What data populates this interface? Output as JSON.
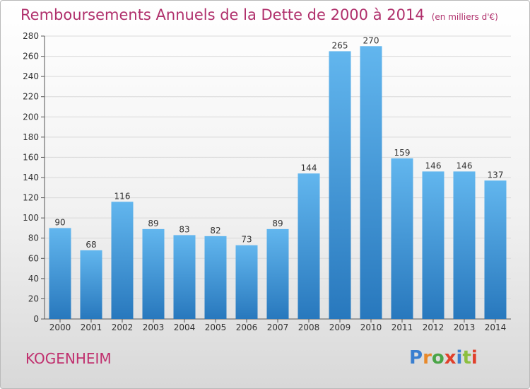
{
  "header": {
    "title": "Remboursements Annuels de la Dette de 2000 à 2014",
    "subtitle": "(en milliers d'€)"
  },
  "footer": {
    "commune": "KOGENHEIM",
    "logo": "Proxiti"
  },
  "colors": {
    "title": "#b0306c",
    "bar_top": "#5fb2ec",
    "bar_bottom": "#2a7fc1",
    "grid": "#d9d9d9"
  },
  "chart_data": {
    "type": "bar",
    "title": "Remboursements Annuels de la Dette de 2000 à 2014",
    "subtitle": "(en milliers d'€)",
    "xlabel": "",
    "ylabel": "",
    "categories": [
      "2000",
      "2001",
      "2002",
      "2003",
      "2004",
      "2005",
      "2006",
      "2007",
      "2008",
      "2009",
      "2010",
      "2011",
      "2012",
      "2013",
      "2014"
    ],
    "values": [
      90,
      68,
      116,
      89,
      83,
      82,
      73,
      89,
      144,
      265,
      270,
      159,
      146,
      146,
      137
    ],
    "ylim": [
      0,
      280
    ],
    "yticks": [
      0,
      20,
      40,
      60,
      80,
      100,
      120,
      140,
      160,
      180,
      200,
      220,
      240,
      260,
      280
    ],
    "grid": true,
    "legend": "none"
  }
}
